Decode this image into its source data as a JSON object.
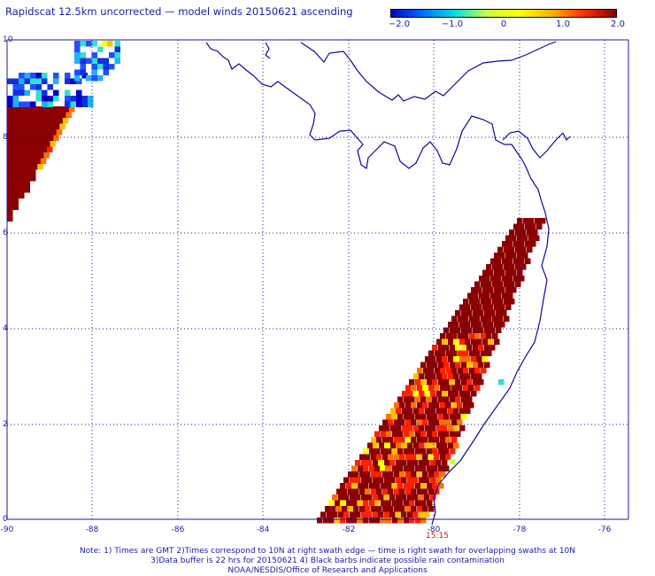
{
  "title": "Rapidscat 12.5km uncorrected — model winds 20150621 ascending",
  "colorbar": {
    "labels": [
      "−2.0",
      "−1.0",
      "0",
      "1.0",
      "2.0"
    ],
    "min": -2.0,
    "max": 2.0,
    "colors": [
      "#0000c8",
      "#0070ff",
      "#00e0e0",
      "#c8ff40",
      "#ffff00",
      "#ffb000",
      "#ff3000",
      "#8b0000"
    ]
  },
  "x_ticks": [
    "-90",
    "-88",
    "-86",
    "-84",
    "-82",
    "-80",
    "-78",
    "-76"
  ],
  "y_ticks": [
    "10",
    "8",
    "6",
    "4",
    "2",
    "0"
  ],
  "time_label": "15:15",
  "notes": [
    "Note: 1) Times are GMT 2)Times correspond to 10N at right swath edge — time is right swath for overlapping swaths at 10N",
    "3)Data buffer is 22 hrs for 20150621 4) Black barbs indicate possible rain contamination",
    "NOAA/NESDIS/Office of Research and Applications"
  ],
  "colors": {
    "text": "#1a1aa6",
    "coast": "#0a0a9a",
    "grid": "#1a1aa6",
    "time": "#b02020"
  }
}
